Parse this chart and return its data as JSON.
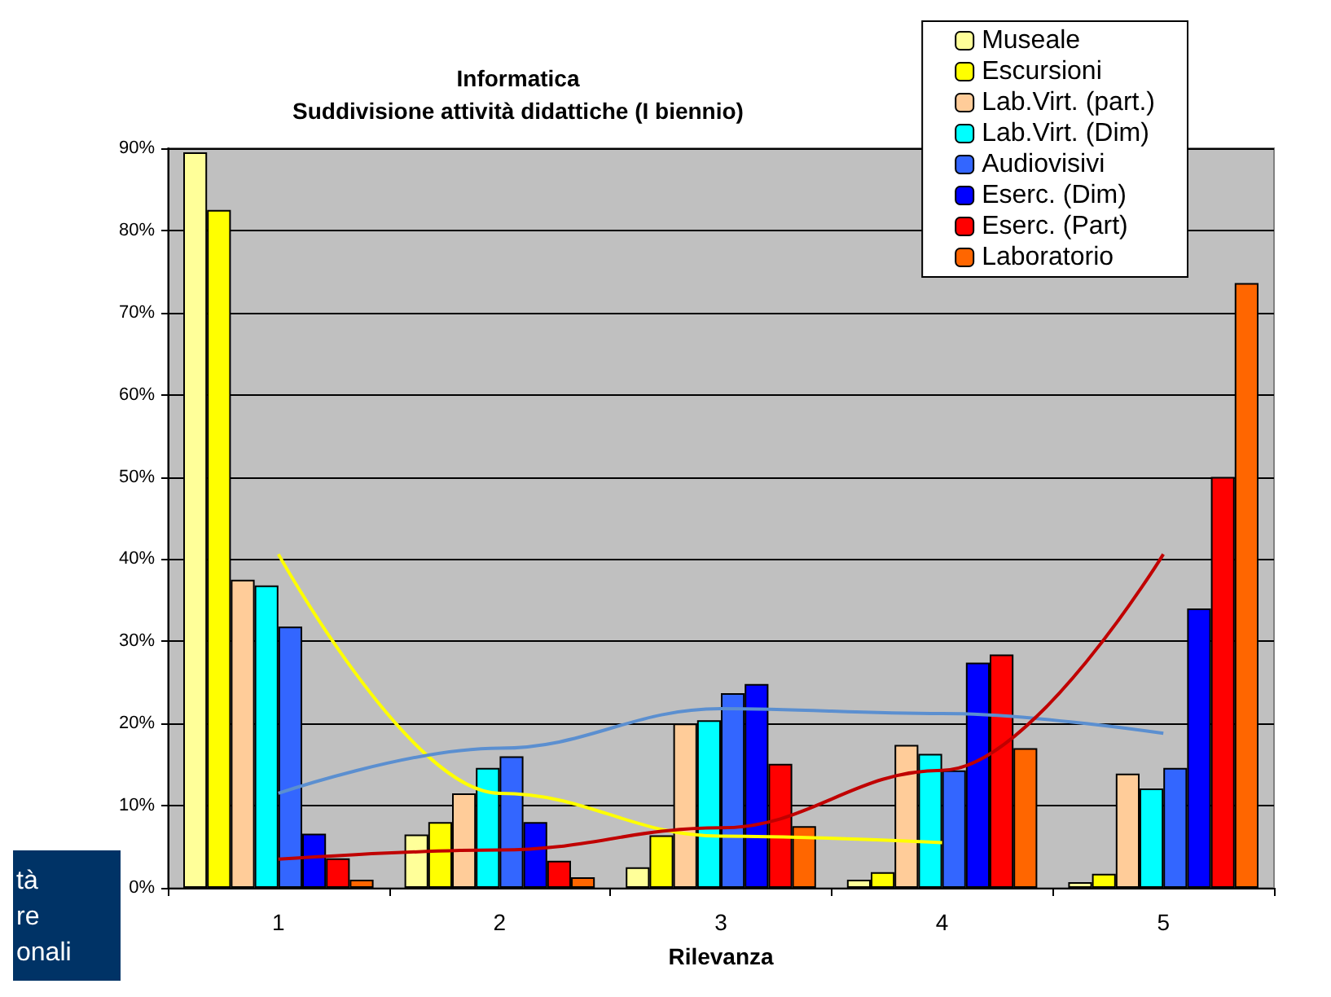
{
  "chart_data": {
    "type": "bar",
    "title": "Informatica",
    "subtitle": "Suddivisione attività didattiche (I biennio)",
    "xlabel": "Rilevanza",
    "categories": [
      "1",
      "2",
      "3",
      "4",
      "5"
    ],
    "series": [
      {
        "name": "Museale",
        "color": "#ffff99",
        "values": [
          89.5,
          6.5,
          2.5,
          1.0,
          0.7
        ]
      },
      {
        "name": "Escursioni",
        "color": "#ffff00",
        "values": [
          82.5,
          8.0,
          6.4,
          1.9,
          1.7
        ]
      },
      {
        "name": "Lab.Virt. (part.)",
        "color": "#ffcc99",
        "values": [
          37.5,
          11.5,
          20.0,
          17.4,
          13.9
        ]
      },
      {
        "name": "Lab.Virt. (Dim)",
        "color": "#00ffff",
        "values": [
          36.8,
          14.6,
          20.4,
          16.3,
          12.1
        ]
      },
      {
        "name": "Audiovisivi",
        "color": "#3366ff",
        "values": [
          31.8,
          16.0,
          23.7,
          14.3,
          14.6
        ]
      },
      {
        "name": "Eserc. (Dim)",
        "color": "#0000ff",
        "values": [
          6.6,
          8.0,
          24.8,
          27.4,
          34.0
        ]
      },
      {
        "name": "Eserc. (Part)",
        "color": "#ff0000",
        "values": [
          3.6,
          3.3,
          15.1,
          28.4,
          50.0
        ]
      },
      {
        "name": "Laboratorio",
        "color": "#ff6600",
        "values": [
          1.0,
          1.3,
          7.5,
          17.0,
          73.6
        ]
      },
      {
        "type": "line",
        "color": "#ffff00",
        "values": [
          40.6,
          11.5,
          6.3,
          5.5,
          null
        ]
      },
      {
        "type": "line",
        "color": "#5b8fd0",
        "values": [
          11.5,
          17,
          21.8,
          21.2,
          18.8
        ]
      },
      {
        "type": "line",
        "color": "#c00000",
        "values": [
          3.5,
          4.6,
          7.3,
          14.3,
          40.6
        ]
      }
    ],
    "ylim": [
      0,
      90
    ],
    "yticks": [
      {
        "value": 0,
        "label": "0%"
      },
      {
        "value": 10,
        "label": "10%"
      },
      {
        "value": 20,
        "label": "20%"
      },
      {
        "value": 30,
        "label": "30%"
      },
      {
        "value": 40,
        "label": "40%"
      },
      {
        "value": 50,
        "label": "50%"
      },
      {
        "value": 60,
        "label": "60%"
      },
      {
        "value": 70,
        "label": "70%"
      },
      {
        "value": 80,
        "label": "80%"
      },
      {
        "value": 90,
        "label": "90%"
      }
    ],
    "grid": "y",
    "legend": "top right",
    "annotations": [
      "tà",
      "re",
      "onali"
    ]
  }
}
